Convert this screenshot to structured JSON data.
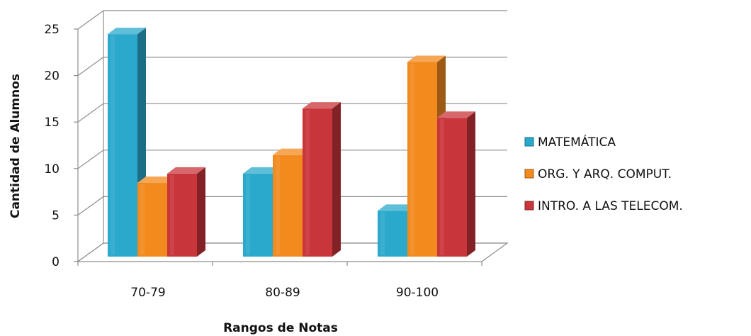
{
  "chart_data": {
    "type": "bar",
    "title": "",
    "xlabel": "Rangos de Notas",
    "ylabel": "Cantidad de Alumnos",
    "categories": [
      "70-79",
      "80-89",
      "90-100"
    ],
    "ylim": [
      0,
      25
    ],
    "yticks": [
      0,
      5,
      10,
      15,
      20,
      25
    ],
    "grid": true,
    "legend_position": "right",
    "series": [
      {
        "name": "MATEMÁTICA",
        "values": [
          24,
          9,
          5
        ],
        "color": "#2aa9cc"
      },
      {
        "name": "ORG. Y ARQ. COMPUT.",
        "values": [
          8,
          11,
          21
        ],
        "color": "#f28a1e"
      },
      {
        "name": "INTRO. A LAS TELECOM.",
        "values": [
          9,
          16,
          15
        ],
        "color": "#c8353a"
      }
    ]
  }
}
